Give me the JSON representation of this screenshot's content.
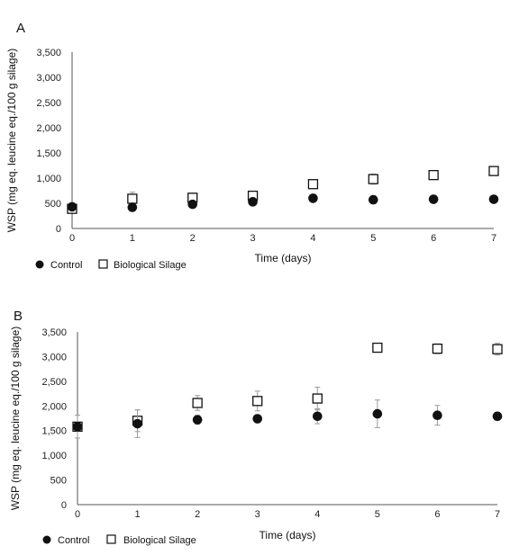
{
  "chart_data": [
    {
      "type": "scatter",
      "panel_label": "A",
      "xlabel": "Time (days)",
      "ylabel": "WSP (mg eq. leucine eq./100 g silage)",
      "x": [
        0,
        1,
        2,
        3,
        4,
        5,
        6,
        7
      ],
      "xlim": [
        0,
        7
      ],
      "ylim": [
        0,
        3500
      ],
      "y_ticks": [
        "0",
        "500",
        "1,000",
        "1,500",
        "2,000",
        "2,500",
        "3,000",
        "3,500"
      ],
      "x_ticks": [
        "0",
        "1",
        "2",
        "3",
        "4",
        "5",
        "6",
        "7"
      ],
      "grid": false,
      "legend_position": "bottom-left",
      "series": [
        {
          "name": "Control",
          "marker": "filled-circle",
          "color": "#111111",
          "values": [
            430,
            420,
            480,
            530,
            600,
            570,
            580,
            580
          ],
          "errors": [
            0,
            0,
            0,
            0,
            0,
            0,
            0,
            0
          ]
        },
        {
          "name": "Biological Silage",
          "marker": "open-square",
          "color": "#111111",
          "values": [
            390,
            590,
            610,
            650,
            880,
            980,
            1060,
            1140
          ],
          "errors": [
            0,
            130,
            90,
            80,
            60,
            100,
            80,
            70
          ]
        }
      ]
    },
    {
      "type": "scatter",
      "panel_label": "B",
      "xlabel": "Time (days)",
      "ylabel": "WSP (mg eq. leucine eq./100 g silage)",
      "x": [
        0,
        1,
        2,
        3,
        4,
        5,
        6,
        7
      ],
      "xlim": [
        0,
        7
      ],
      "ylim": [
        0,
        3500
      ],
      "y_ticks": [
        "0",
        "500",
        "1,000",
        "1,500",
        "2,000",
        "2,500",
        "3,000",
        "3,500"
      ],
      "x_ticks": [
        "0",
        "1",
        "2",
        "3",
        "4",
        "5",
        "6",
        "7"
      ],
      "grid": false,
      "legend_position": "bottom-left",
      "series": [
        {
          "name": "Control",
          "marker": "filled-circle",
          "color": "#111111",
          "values": [
            1580,
            1640,
            1720,
            1740,
            1790,
            1840,
            1810,
            1790
          ],
          "errors": [
            230,
            280,
            90,
            80,
            150,
            280,
            200,
            80
          ]
        },
        {
          "name": "Biological Silage",
          "marker": "open-square",
          "color": "#111111",
          "values": [
            1580,
            1700,
            2060,
            2100,
            2150,
            3180,
            3160,
            3150
          ],
          "errors": [
            0,
            220,
            150,
            200,
            230,
            50,
            100,
            120
          ]
        }
      ]
    }
  ]
}
